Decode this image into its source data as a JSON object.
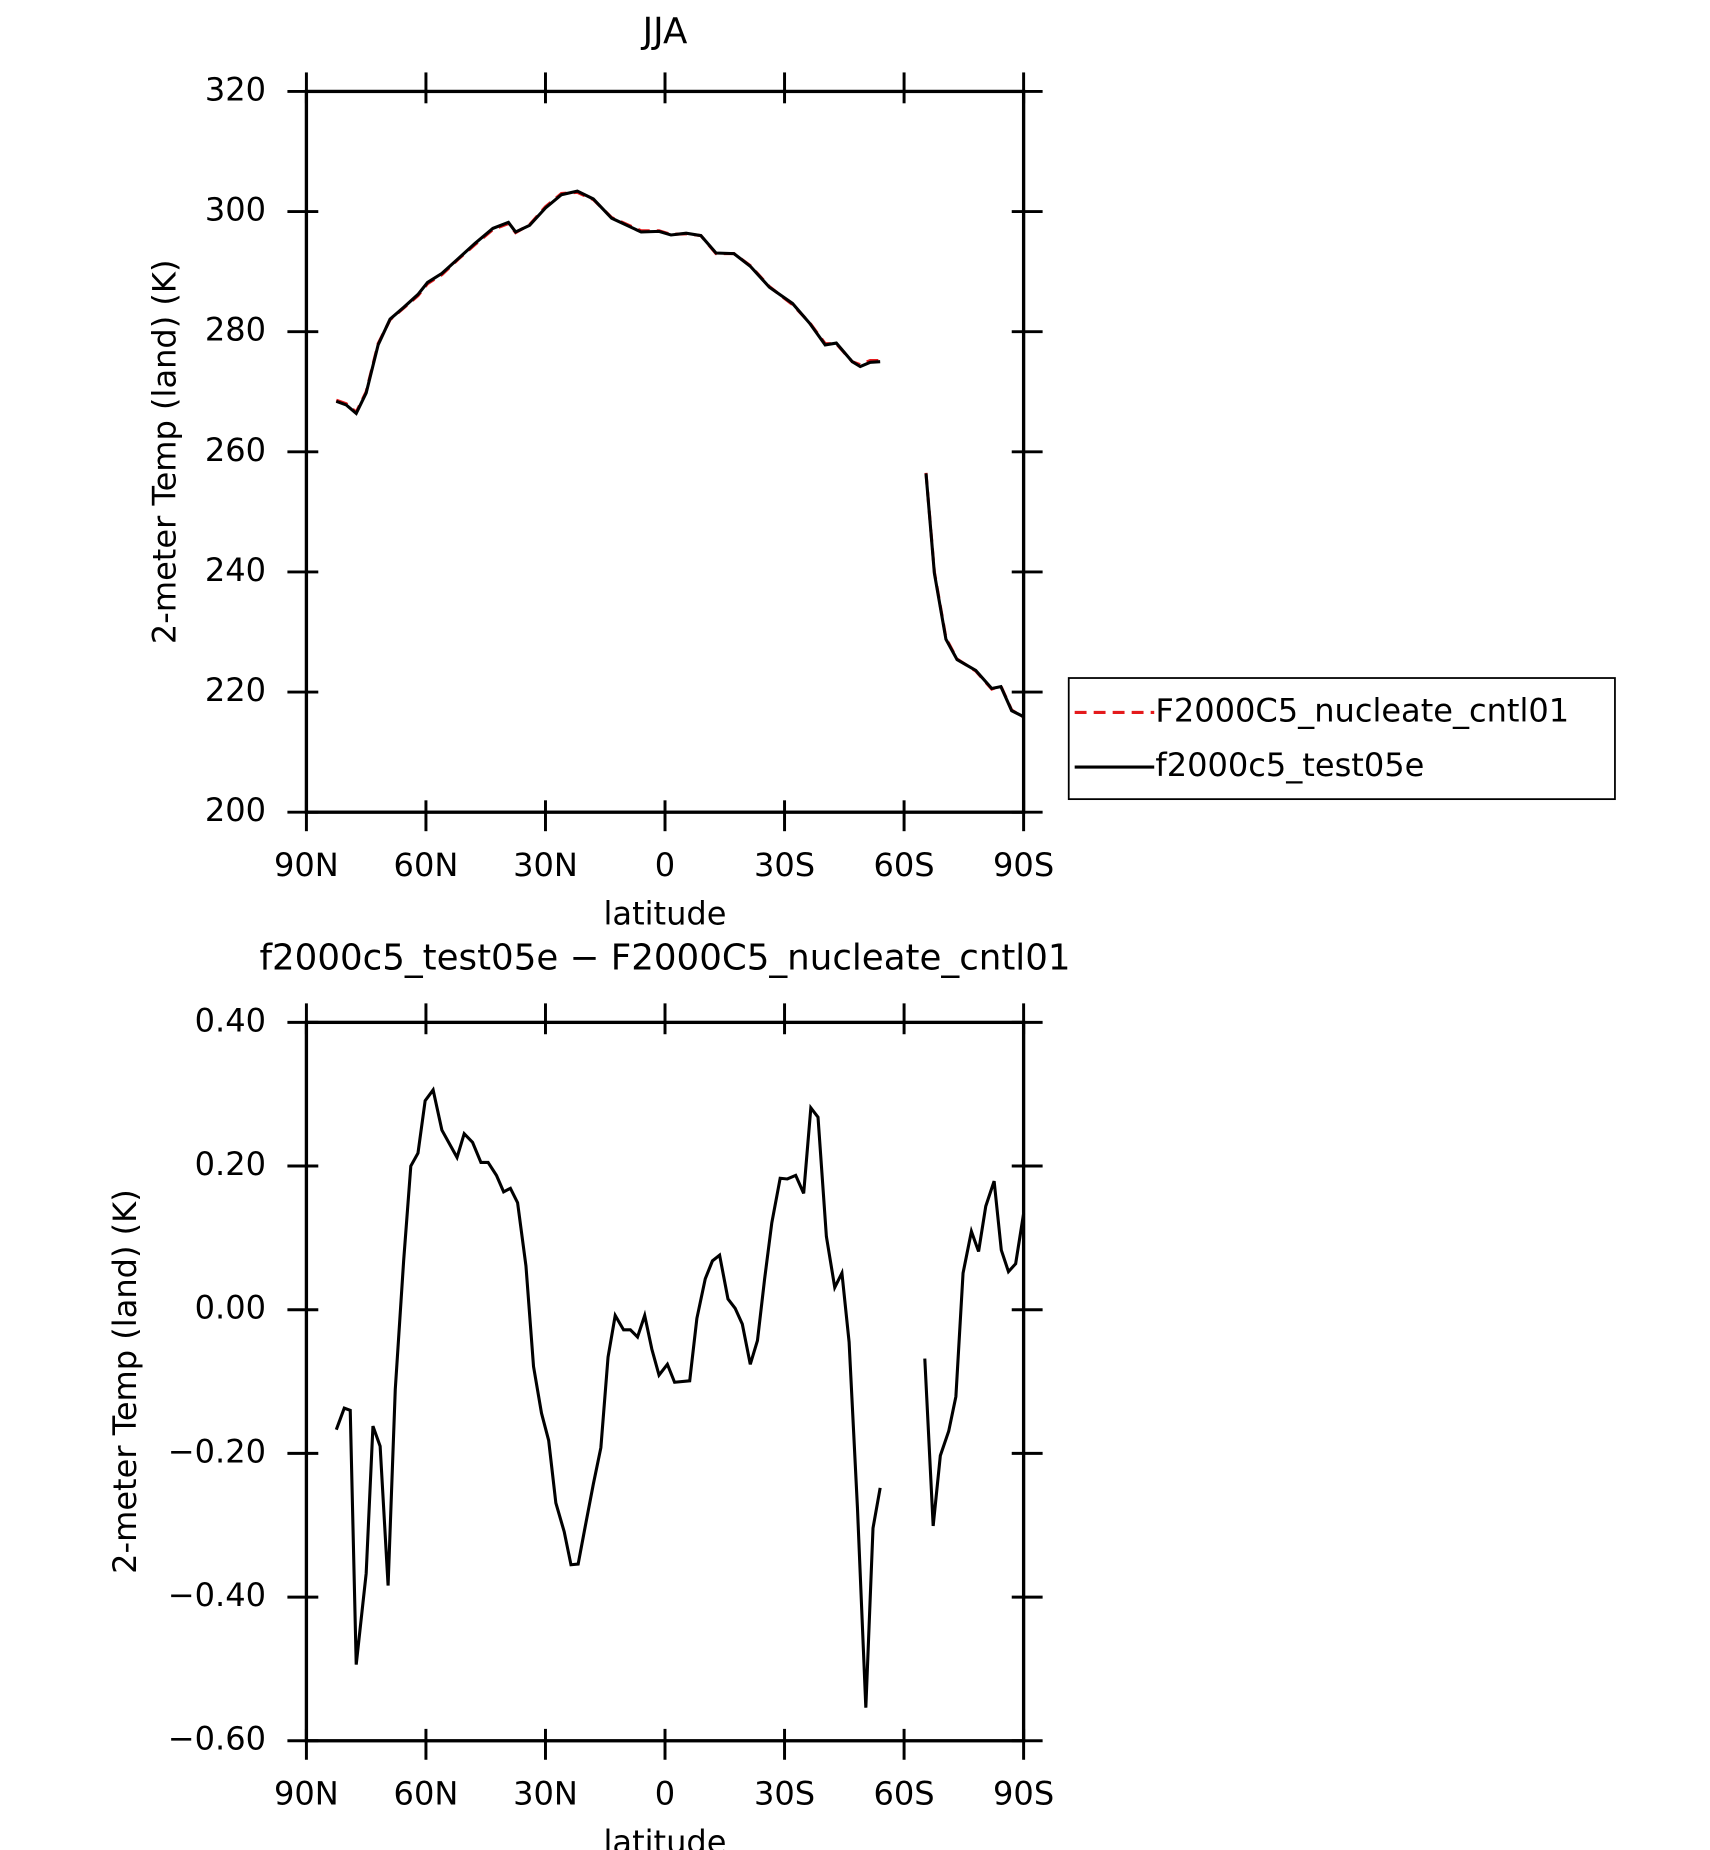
{
  "chart_data": [
    {
      "type": "line",
      "title": "JJA",
      "xlabel": "latitude",
      "ylabel": "2-meter Temp (land) (K)",
      "x": [
        82.5,
        80,
        77.5,
        75,
        72,
        69,
        65.5,
        62,
        59.6,
        56,
        52,
        47.7,
        43.2,
        39.3,
        37.5,
        34,
        30,
        26,
        22,
        18,
        13.4,
        6,
        1.5,
        -1.5,
        -5.3,
        -9,
        -12.8,
        -17.3,
        -21.4,
        -26.2,
        -32,
        -36.3,
        -40.2,
        -43,
        -47,
        -49,
        -51.5,
        -54,
        -60,
        -65.5,
        -67.6,
        -70.5,
        -73.3,
        -78,
        -82,
        -84.3,
        -87,
        -90
      ],
      "series": [
        {
          "name": "F2000C5_nucleate_cntl01",
          "color": "#e41a1c",
          "dash": "dashed",
          "values": [
            268.6,
            268,
            266.6,
            270,
            278,
            282,
            284,
            286,
            288,
            289.5,
            292,
            294.5,
            297,
            298,
            296.5,
            297.8,
            300.8,
            303,
            303.2,
            302,
            299,
            296.8,
            296.8,
            296.2,
            296.3,
            296,
            293,
            293,
            291,
            287.5,
            284.5,
            281.5,
            278,
            278,
            275,
            274.5,
            275.2,
            275.2,
            null,
            256.5,
            240,
            229,
            225.5,
            223.5,
            220.5,
            221,
            217,
            215.8
          ]
        },
        {
          "name": "f2000c5_test05e",
          "color": "#000000",
          "dash": "solid",
          "values": [
            268.4,
            267.8,
            266.4,
            269.8,
            277.8,
            282.1,
            284.1,
            286.2,
            288.2,
            289.7,
            292.1,
            294.7,
            297.2,
            298.2,
            296.6,
            297.7,
            300.6,
            302.8,
            303.4,
            302.1,
            298.9,
            296.6,
            296.7,
            296.1,
            296.4,
            296,
            293.1,
            293,
            290.9,
            287.4,
            284.7,
            281.4,
            277.8,
            278.1,
            275,
            274.2,
            274.9,
            275,
            null,
            256.4,
            239.8,
            228.8,
            225.4,
            223.6,
            220.6,
            220.9,
            216.9,
            215.9
          ]
        }
      ],
      "xlim": [
        90,
        -90
      ],
      "xticks": [
        {
          "value": 90,
          "label": "90N"
        },
        {
          "value": 60,
          "label": "60N"
        },
        {
          "value": 30,
          "label": "30N"
        },
        0,
        {
          "value": -30,
          "label": "30S"
        },
        {
          "value": -60,
          "label": "60S"
        },
        {
          "value": -90,
          "label": "90S"
        }
      ],
      "ylim": [
        200,
        320
      ],
      "yticks": [
        200,
        220,
        240,
        260,
        280,
        300,
        320
      ],
      "legend": "right"
    },
    {
      "type": "line",
      "title": "f2000c5_test05e − F2000C5_nucleate_cntl01",
      "xlabel": "latitude",
      "ylabel": "2-meter Temp (land) (K)",
      "x": [
        82.5,
        80.5,
        79,
        77.5,
        75,
        73.3,
        71.5,
        69.5,
        67.7,
        65.6,
        63.8,
        62,
        60.2,
        58.2,
        56,
        52.2,
        50.4,
        48.3,
        46.2,
        44.4,
        42.3,
        40.5,
        38.8,
        37,
        34.9,
        33,
        31,
        29.2,
        27.4,
        25.3,
        23.6,
        21.8,
        20,
        18,
        16.1,
        14.3,
        12.5,
        10.4,
        8.7,
        6.9,
        5.1,
        3.3,
        1.5,
        -0.6,
        -2.4,
        -6.2,
        -8,
        -10.1,
        -11.9,
        -13.7,
        -15.8,
        -17.6,
        -19.4,
        -21.4,
        -23.2,
        -25,
        -26.8,
        -28.9,
        -30.7,
        -32.8,
        -34.8,
        -36.6,
        -38.4,
        -40.5,
        -42.6,
        -44.4,
        -46.2,
        -48.3,
        -50.4,
        -52.2,
        -54,
        -60,
        -65.2,
        -67.3,
        -69.1,
        -71.2,
        -73,
        -74.8,
        -76.9,
        -78.7,
        -80.5,
        -82.6,
        -84.4,
        -86.2,
        -88,
        -90
      ],
      "values": [
        -0.167,
        -0.137,
        -0.14,
        -0.494,
        -0.367,
        -0.162,
        -0.19,
        -0.384,
        -0.111,
        0.068,
        0.2,
        0.218,
        0.291,
        0.306,
        0.25,
        0.212,
        0.245,
        0.233,
        0.205,
        0.205,
        0.187,
        0.164,
        0.169,
        0.149,
        0.061,
        -0.079,
        -0.144,
        -0.182,
        -0.269,
        -0.309,
        -0.355,
        -0.354,
        -0.301,
        -0.243,
        -0.192,
        -0.066,
        -0.008,
        -0.028,
        -0.028,
        -0.038,
        -0.008,
        -0.055,
        -0.091,
        -0.076,
        -0.101,
        -0.099,
        -0.012,
        0.043,
        0.068,
        0.076,
        0.015,
        0.002,
        -0.02,
        -0.076,
        -0.043,
        0.043,
        0.121,
        0.183,
        0.182,
        0.187,
        0.162,
        0.281,
        0.268,
        0.102,
        0.031,
        0.051,
        -0.045,
        -0.276,
        -0.554,
        -0.304,
        -0.248,
        null,
        -0.068,
        -0.301,
        -0.203,
        -0.169,
        -0.121,
        0.051,
        0.109,
        0.081,
        0.144,
        0.179,
        0.083,
        0.053,
        0.064,
        0.134
      ],
      "color": "#000000",
      "xlim": [
        90,
        -90
      ],
      "xticks": [
        {
          "value": 90,
          "label": "90N"
        },
        {
          "value": 60,
          "label": "60N"
        },
        {
          "value": 30,
          "label": "30N"
        },
        0,
        {
          "value": -30,
          "label": "30S"
        },
        {
          "value": -60,
          "label": "60S"
        },
        {
          "value": -90,
          "label": "90S"
        }
      ],
      "ylim": [
        -0.6,
        0.4
      ],
      "yticks": [
        {
          "value": -0.6,
          "label": "−0.60"
        },
        {
          "value": -0.4,
          "label": "−0.40"
        },
        {
          "value": -0.2,
          "label": "−0.20"
        },
        {
          "value": 0,
          "label": "0.00"
        },
        {
          "value": 0.2,
          "label": "0.20"
        },
        {
          "value": 0.4,
          "label": "0.40"
        }
      ]
    }
  ]
}
